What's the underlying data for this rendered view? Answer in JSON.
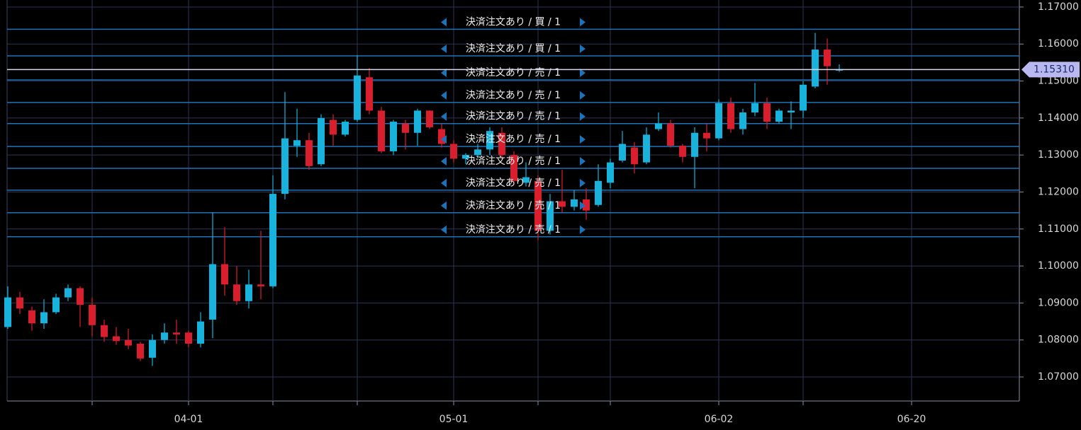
{
  "chart_data": {
    "type": "candlestick",
    "categories": [
      null,
      null,
      null,
      null,
      null,
      null,
      null,
      null,
      null,
      null,
      null,
      null,
      null,
      null,
      null,
      "04-01",
      null,
      null,
      null,
      null,
      null,
      null,
      null,
      null,
      null,
      null,
      null,
      null,
      null,
      null,
      null,
      null,
      null,
      null,
      null,
      null,
      null,
      "05-01",
      null,
      null,
      null,
      null,
      null,
      null,
      null,
      null,
      null,
      null,
      null,
      null,
      null,
      null,
      null,
      null,
      null,
      null,
      null,
      null,
      null,
      "06-02",
      null,
      null,
      null,
      null,
      null,
      null,
      null,
      null,
      null,
      null,
      null,
      null,
      null,
      null,
      null,
      "06-20"
    ],
    "open": [
      1.0835,
      1.0915,
      1.088,
      1.0845,
      1.0875,
      1.0915,
      1.094,
      1.0895,
      1.084,
      1.081,
      1.08,
      1.079,
      1.0752,
      1.08,
      1.082,
      1.082,
      1.079,
      1.0855,
      1.1005,
      1.095,
      1.0905,
      1.095,
      1.0945,
      1.1195,
      1.1325,
      1.134,
      1.1275,
      1.1395,
      1.1355,
      1.1395,
      1.151,
      1.142,
      1.131,
      1.1385,
      1.136,
      1.142,
      1.137,
      1.133,
      1.129,
      1.13,
      1.1315,
      1.136,
      1.13,
      1.1225,
      1.123,
      1.1095,
      1.1175,
      1.116,
      1.118,
      1.1165,
      1.1225,
      1.1285,
      1.132,
      1.128,
      1.137,
      1.1385,
      1.1325,
      1.1295,
      1.136,
      1.1345,
      1.144,
      1.137,
      1.1415,
      1.144,
      1.139,
      1.1415,
      1.142,
      1.1485,
      1.1585,
      1.153,
      null,
      null,
      null,
      null,
      null,
      null
    ],
    "high": [
      1.0945,
      1.093,
      1.089,
      1.091,
      1.0925,
      1.095,
      1.0945,
      1.0915,
      1.0855,
      1.0835,
      1.083,
      1.0795,
      1.0815,
      1.0845,
      1.0855,
      1.0825,
      1.0875,
      1.1145,
      1.1105,
      1.1,
      1.099,
      1.1095,
      1.1245,
      1.147,
      1.1425,
      1.136,
      1.141,
      1.141,
      1.1395,
      1.157,
      1.1535,
      1.143,
      1.1395,
      1.1395,
      1.1425,
      1.142,
      1.1385,
      1.134,
      1.1305,
      1.133,
      1.1375,
      1.1375,
      1.131,
      1.128,
      1.1245,
      1.1195,
      1.126,
      1.1205,
      1.121,
      1.1275,
      1.129,
      1.1365,
      1.1335,
      1.1375,
      1.1415,
      1.1395,
      1.133,
      1.1375,
      1.1385,
      1.145,
      1.1455,
      1.1425,
      1.1495,
      1.1455,
      1.1425,
      1.1445,
      1.15,
      1.163,
      1.1615,
      1.1545,
      null,
      null,
      null,
      null,
      null,
      null
    ],
    "low": [
      1.083,
      1.087,
      1.0825,
      1.083,
      1.087,
      1.0905,
      1.0835,
      1.081,
      1.0795,
      1.0787,
      1.0775,
      1.0743,
      1.073,
      1.079,
      1.079,
      1.078,
      1.078,
      1.0805,
      1.092,
      1.0895,
      1.0885,
      1.091,
      1.094,
      1.118,
      1.1295,
      1.126,
      1.127,
      1.1325,
      1.135,
      1.139,
      1.141,
      1.1305,
      1.13,
      1.1315,
      1.1325,
      1.137,
      1.132,
      1.128,
      1.1275,
      1.129,
      1.13,
      1.129,
      1.122,
      1.1215,
      1.107,
      1.1085,
      1.1145,
      1.115,
      1.1125,
      1.116,
      1.121,
      1.128,
      1.125,
      1.1275,
      1.1365,
      1.132,
      1.128,
      1.121,
      1.131,
      1.134,
      1.136,
      1.1355,
      1.1405,
      1.137,
      1.1385,
      1.137,
      1.14,
      1.148,
      1.149,
      1.1525,
      null,
      null,
      null,
      null,
      null,
      null
    ],
    "close": [
      1.0915,
      1.0885,
      1.0845,
      1.0875,
      1.0915,
      1.094,
      1.0895,
      1.084,
      1.0808,
      1.0797,
      1.0785,
      1.075,
      1.08,
      1.082,
      1.0815,
      1.079,
      1.085,
      1.1005,
      1.095,
      1.0905,
      1.095,
      1.0945,
      1.1195,
      1.1345,
      1.134,
      1.127,
      1.14,
      1.1355,
      1.139,
      1.1515,
      1.142,
      1.131,
      1.139,
      1.136,
      1.142,
      1.1375,
      1.133,
      1.129,
      1.13,
      1.1315,
      1.1365,
      1.13,
      1.123,
      1.124,
      1.1095,
      1.1175,
      1.116,
      1.118,
      1.115,
      1.123,
      1.128,
      1.133,
      1.1275,
      1.1355,
      1.1385,
      1.1325,
      1.1295,
      1.136,
      1.1345,
      1.144,
      1.137,
      1.1415,
      1.144,
      1.139,
      1.142,
      1.142,
      1.149,
      1.1585,
      1.154,
      1.1531,
      null,
      null,
      null,
      null,
      null,
      null
    ],
    "up_color": "#17b3dc",
    "down_color": "#d91f2e",
    "ylim": [
      1.0635,
      1.1719
    ],
    "yticks": [
      {
        "value": 1.07,
        "label": "1.07000"
      },
      {
        "value": 1.08,
        "label": "1.08000"
      },
      {
        "value": 1.09,
        "label": "1.09000"
      },
      {
        "value": 1.1,
        "label": "1.10000"
      },
      {
        "value": 1.11,
        "label": "1.11000"
      },
      {
        "value": 1.12,
        "label": "1.12000"
      },
      {
        "value": 1.13,
        "label": "1.13000"
      },
      {
        "value": 1.14,
        "label": "1.14000"
      },
      {
        "value": 1.15,
        "label": "1.15000"
      },
      {
        "value": 1.16,
        "label": "1.16000"
      },
      {
        "value": 1.17,
        "label": "1.17000"
      }
    ],
    "grid": true,
    "current_price": {
      "value": 1.1531,
      "label": "1.15310"
    },
    "orders": [
      {
        "label": "決済注文あり / 買 / 1",
        "price": 1.164
      },
      {
        "label": "決済注文あり / 買 / 1",
        "price": 1.1568
      },
      {
        "label": "決済注文あり / 売 / 1",
        "price": 1.1503
      },
      {
        "label": "決済注文あり / 売 / 1",
        "price": 1.1442
      },
      {
        "label": "決済注文あり / 売 / 1",
        "price": 1.1385
      },
      {
        "label": "決済注文あり / 売 / 1",
        "price": 1.1323
      },
      {
        "label": "決済注文あり / 売 / 1",
        "price": 1.1264
      },
      {
        "label": "決済注文あり / 売 / 1",
        "price": 1.1205
      },
      {
        "label": "決済注文あり / 売 / 1",
        "price": 1.1144
      },
      {
        "label": "決済注文あり / 売 / 1",
        "price": 1.1079
      }
    ]
  }
}
